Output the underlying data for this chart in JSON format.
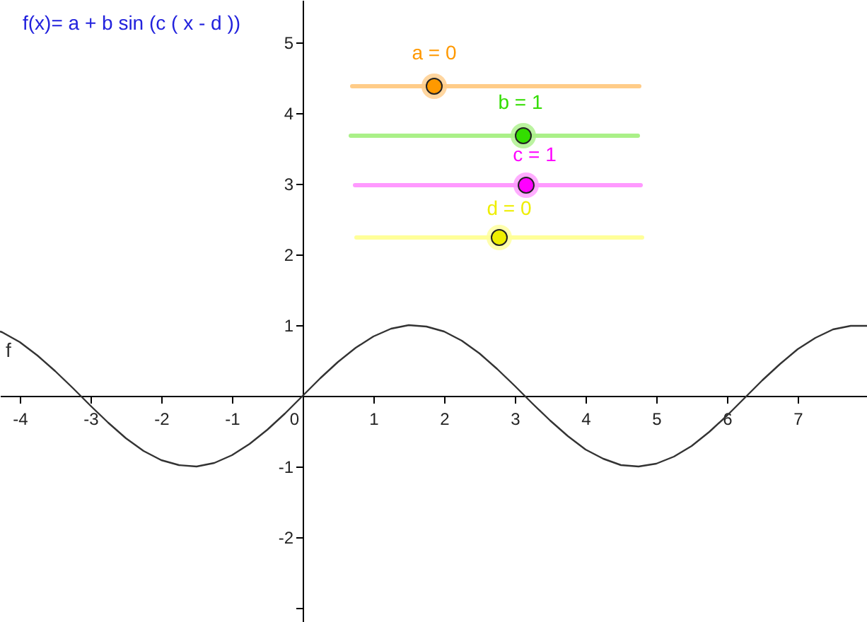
{
  "chart_data": {
    "type": "line",
    "title": "f(x)= a + b sin (c ( x - d ))",
    "annotations": [
      "a = 0",
      "b = 1",
      "c = 1",
      "d = 0"
    ],
    "x": [
      -4.28,
      -4.25,
      -4,
      -3.75,
      -3.5,
      -3.25,
      -3,
      -2.75,
      -2.5,
      -2.25,
      -2,
      -1.75,
      -1.5,
      -1.25,
      -1,
      -0.75,
      -0.5,
      -0.25,
      0,
      0.25,
      0.5,
      0.75,
      1,
      1.25,
      1.5,
      1.75,
      2,
      2.25,
      2.5,
      2.75,
      3,
      3.25,
      3.5,
      3.75,
      4,
      4.25,
      4.5,
      4.75,
      5,
      5.25,
      5.5,
      5.75,
      6,
      6.25,
      6.5,
      6.75,
      7,
      7.25,
      7.5,
      7.75,
      7.98
    ],
    "series": [
      {
        "name": "f",
        "color": "#333333",
        "values": [
          0.91,
          0.9,
          0.76,
          0.57,
          0.35,
          0.11,
          -0.14,
          -0.38,
          -0.6,
          -0.78,
          -0.91,
          -0.98,
          -1,
          -0.95,
          -0.84,
          -0.68,
          -0.48,
          -0.25,
          0,
          0.25,
          0.48,
          0.68,
          0.84,
          0.95,
          1,
          0.98,
          0.91,
          0.78,
          0.6,
          0.38,
          0.14,
          -0.11,
          -0.35,
          -0.57,
          -0.76,
          -0.89,
          -0.98,
          -1,
          -0.96,
          -0.86,
          -0.71,
          -0.51,
          -0.28,
          -0.03,
          0.22,
          0.45,
          0.66,
          0.82,
          0.94,
          0.99,
          0.99
        ]
      }
    ],
    "xlim": [
      -4.28,
      7.98
    ],
    "ylim": [
      -3.2,
      5.6
    ],
    "xticks": [
      -4,
      -3,
      -2,
      -1,
      0,
      1,
      2,
      3,
      4,
      5,
      6,
      7
    ],
    "yticks": [
      {
        "value": -3,
        "label": null
      },
      -2,
      -1,
      {
        "value": 0,
        "label": null
      },
      1,
      2,
      3,
      4,
      5
    ],
    "grid": false,
    "marker": "none",
    "line_style": "solid"
  }
}
